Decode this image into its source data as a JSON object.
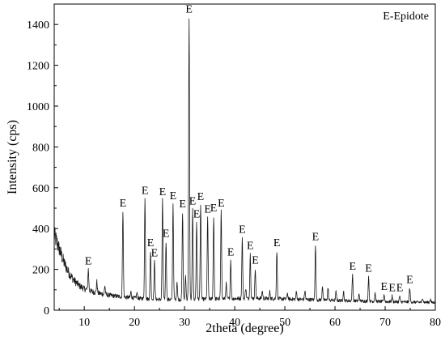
{
  "chart_data": {
    "type": "line",
    "xlabel": "2theta (degree)",
    "ylabel": "Intensity  (cps)",
    "xlim": [
      4,
      80
    ],
    "ylim": [
      0,
      1500
    ],
    "x_ticks": [
      "10",
      "20",
      "30",
      "40",
      "50",
      "60",
      "70",
      "80"
    ],
    "y_ticks": [
      "0",
      "200",
      "400",
      "600",
      "800",
      "1000",
      "1200",
      "1400"
    ],
    "grid": false,
    "legend": {
      "text": "E-Epidote",
      "placement": "top-right"
    },
    "series": [
      {
        "color": "#1a1a1a",
        "background": [
          [
            4,
            370
          ],
          [
            5,
            300
          ],
          [
            6,
            230
          ],
          [
            7,
            180
          ],
          [
            8,
            145
          ],
          [
            9,
            120
          ],
          [
            10,
            105
          ],
          [
            12,
            88
          ],
          [
            14,
            77
          ],
          [
            16,
            70
          ],
          [
            18,
            64
          ],
          [
            20,
            60
          ],
          [
            22,
            56
          ],
          [
            25,
            53
          ],
          [
            28,
            52
          ],
          [
            30,
            52
          ],
          [
            35,
            55
          ],
          [
            40,
            57
          ],
          [
            45,
            58
          ],
          [
            50,
            55
          ],
          [
            55,
            52
          ],
          [
            60,
            48
          ],
          [
            65,
            45
          ],
          [
            70,
            42
          ],
          [
            75,
            40
          ],
          [
            80,
            38
          ]
        ],
        "peaks": [
          {
            "x": 10.8,
            "y": 200,
            "label": "E"
          },
          {
            "x": 17.7,
            "y": 485,
            "label": "E"
          },
          {
            "x": 22.1,
            "y": 545,
            "label": "E"
          },
          {
            "x": 23.2,
            "y": 290,
            "label": "E"
          },
          {
            "x": 24.0,
            "y": 240,
            "label": "E"
          },
          {
            "x": 25.6,
            "y": 540,
            "label": "E"
          },
          {
            "x": 26.3,
            "y": 335,
            "label": "E"
          },
          {
            "x": 27.7,
            "y": 520,
            "label": "E"
          },
          {
            "x": 29.6,
            "y": 480,
            "label": "E"
          },
          {
            "x": 30.9,
            "y": 1435,
            "label": "E"
          },
          {
            "x": 31.6,
            "y": 495,
            "label": "E"
          },
          {
            "x": 32.4,
            "y": 430,
            "label": "E"
          },
          {
            "x": 33.2,
            "y": 515,
            "label": "E"
          },
          {
            "x": 34.6,
            "y": 455,
            "label": "E"
          },
          {
            "x": 35.8,
            "y": 460,
            "label": "E"
          },
          {
            "x": 37.3,
            "y": 485,
            "label": "E"
          },
          {
            "x": 39.2,
            "y": 245,
            "label": "E"
          },
          {
            "x": 41.5,
            "y": 355,
            "label": "E"
          },
          {
            "x": 43.1,
            "y": 275,
            "label": "E"
          },
          {
            "x": 44.1,
            "y": 205,
            "label": "E"
          },
          {
            "x": 48.4,
            "y": 290,
            "label": "E"
          },
          {
            "x": 56.1,
            "y": 320,
            "label": "E"
          },
          {
            "x": 63.5,
            "y": 175,
            "label": "E"
          },
          {
            "x": 66.7,
            "y": 165,
            "label": "E"
          },
          {
            "x": 69.8,
            "y": 75,
            "label": "E"
          },
          {
            "x": 71.4,
            "y": 70,
            "label": "E"
          },
          {
            "x": 72.9,
            "y": 70,
            "label": "E"
          },
          {
            "x": 74.9,
            "y": 110,
            "label": "E"
          }
        ],
        "minor_peaks": [
          [
            12.5,
            140
          ],
          [
            14.1,
            120
          ],
          [
            19.3,
            90
          ],
          [
            20.5,
            85
          ],
          [
            28.5,
            140
          ],
          [
            30.2,
            170
          ],
          [
            38.3,
            130
          ],
          [
            42.2,
            110
          ],
          [
            45.5,
            95
          ],
          [
            47.0,
            90
          ],
          [
            50.5,
            85
          ],
          [
            52.3,
            90
          ],
          [
            54.0,
            95
          ],
          [
            57.5,
            120
          ],
          [
            58.6,
            110
          ],
          [
            60.2,
            90
          ],
          [
            61.7,
            95
          ],
          [
            64.8,
            80
          ],
          [
            68.0,
            85
          ],
          [
            77.5,
            60
          ],
          [
            79.0,
            55
          ]
        ]
      }
    ]
  }
}
